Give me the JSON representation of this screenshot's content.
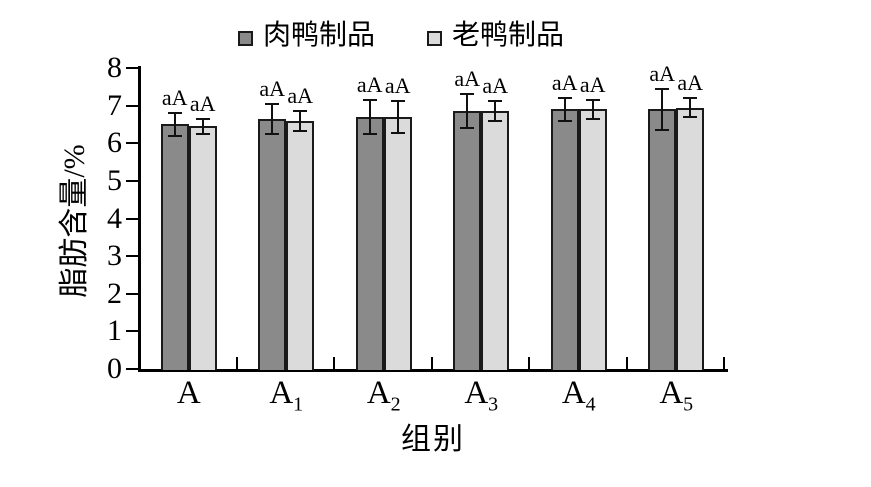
{
  "chart_data": {
    "type": "bar",
    "title": "",
    "xlabel": "组别",
    "ylabel": "脂肪含量/%",
    "ylim": [
      0,
      8
    ],
    "yticks": [
      0,
      1,
      2,
      3,
      4,
      5,
      6,
      7,
      8
    ],
    "grid": false,
    "legend_position": "top",
    "categories": [
      {
        "base": "A",
        "sub": ""
      },
      {
        "base": "A",
        "sub": "1"
      },
      {
        "base": "A",
        "sub": "2"
      },
      {
        "base": "A",
        "sub": "3"
      },
      {
        "base": "A",
        "sub": "4"
      },
      {
        "base": "A",
        "sub": "5"
      }
    ],
    "series": [
      {
        "name": "肉鸭制品",
        "color": "#8a8a8a",
        "values": [
          6.5,
          6.65,
          6.7,
          6.85,
          6.9,
          6.9
        ],
        "errors": [
          0.3,
          0.4,
          0.45,
          0.45,
          0.3,
          0.55
        ],
        "sig_labels": [
          "aA",
          "aA",
          "aA",
          "aA",
          "aA",
          "aA"
        ]
      },
      {
        "name": "老鸭制品",
        "color": "#dbdbdb",
        "values": [
          6.45,
          6.6,
          6.7,
          6.85,
          6.9,
          6.95
        ],
        "errors": [
          0.2,
          0.27,
          0.42,
          0.27,
          0.25,
          0.24
        ],
        "sig_labels": [
          "aA",
          "aA",
          "aA",
          "aA",
          "aA",
          "aA"
        ]
      }
    ],
    "axis_color": "#000000",
    "bar_border_color": "#1a1a1a"
  }
}
